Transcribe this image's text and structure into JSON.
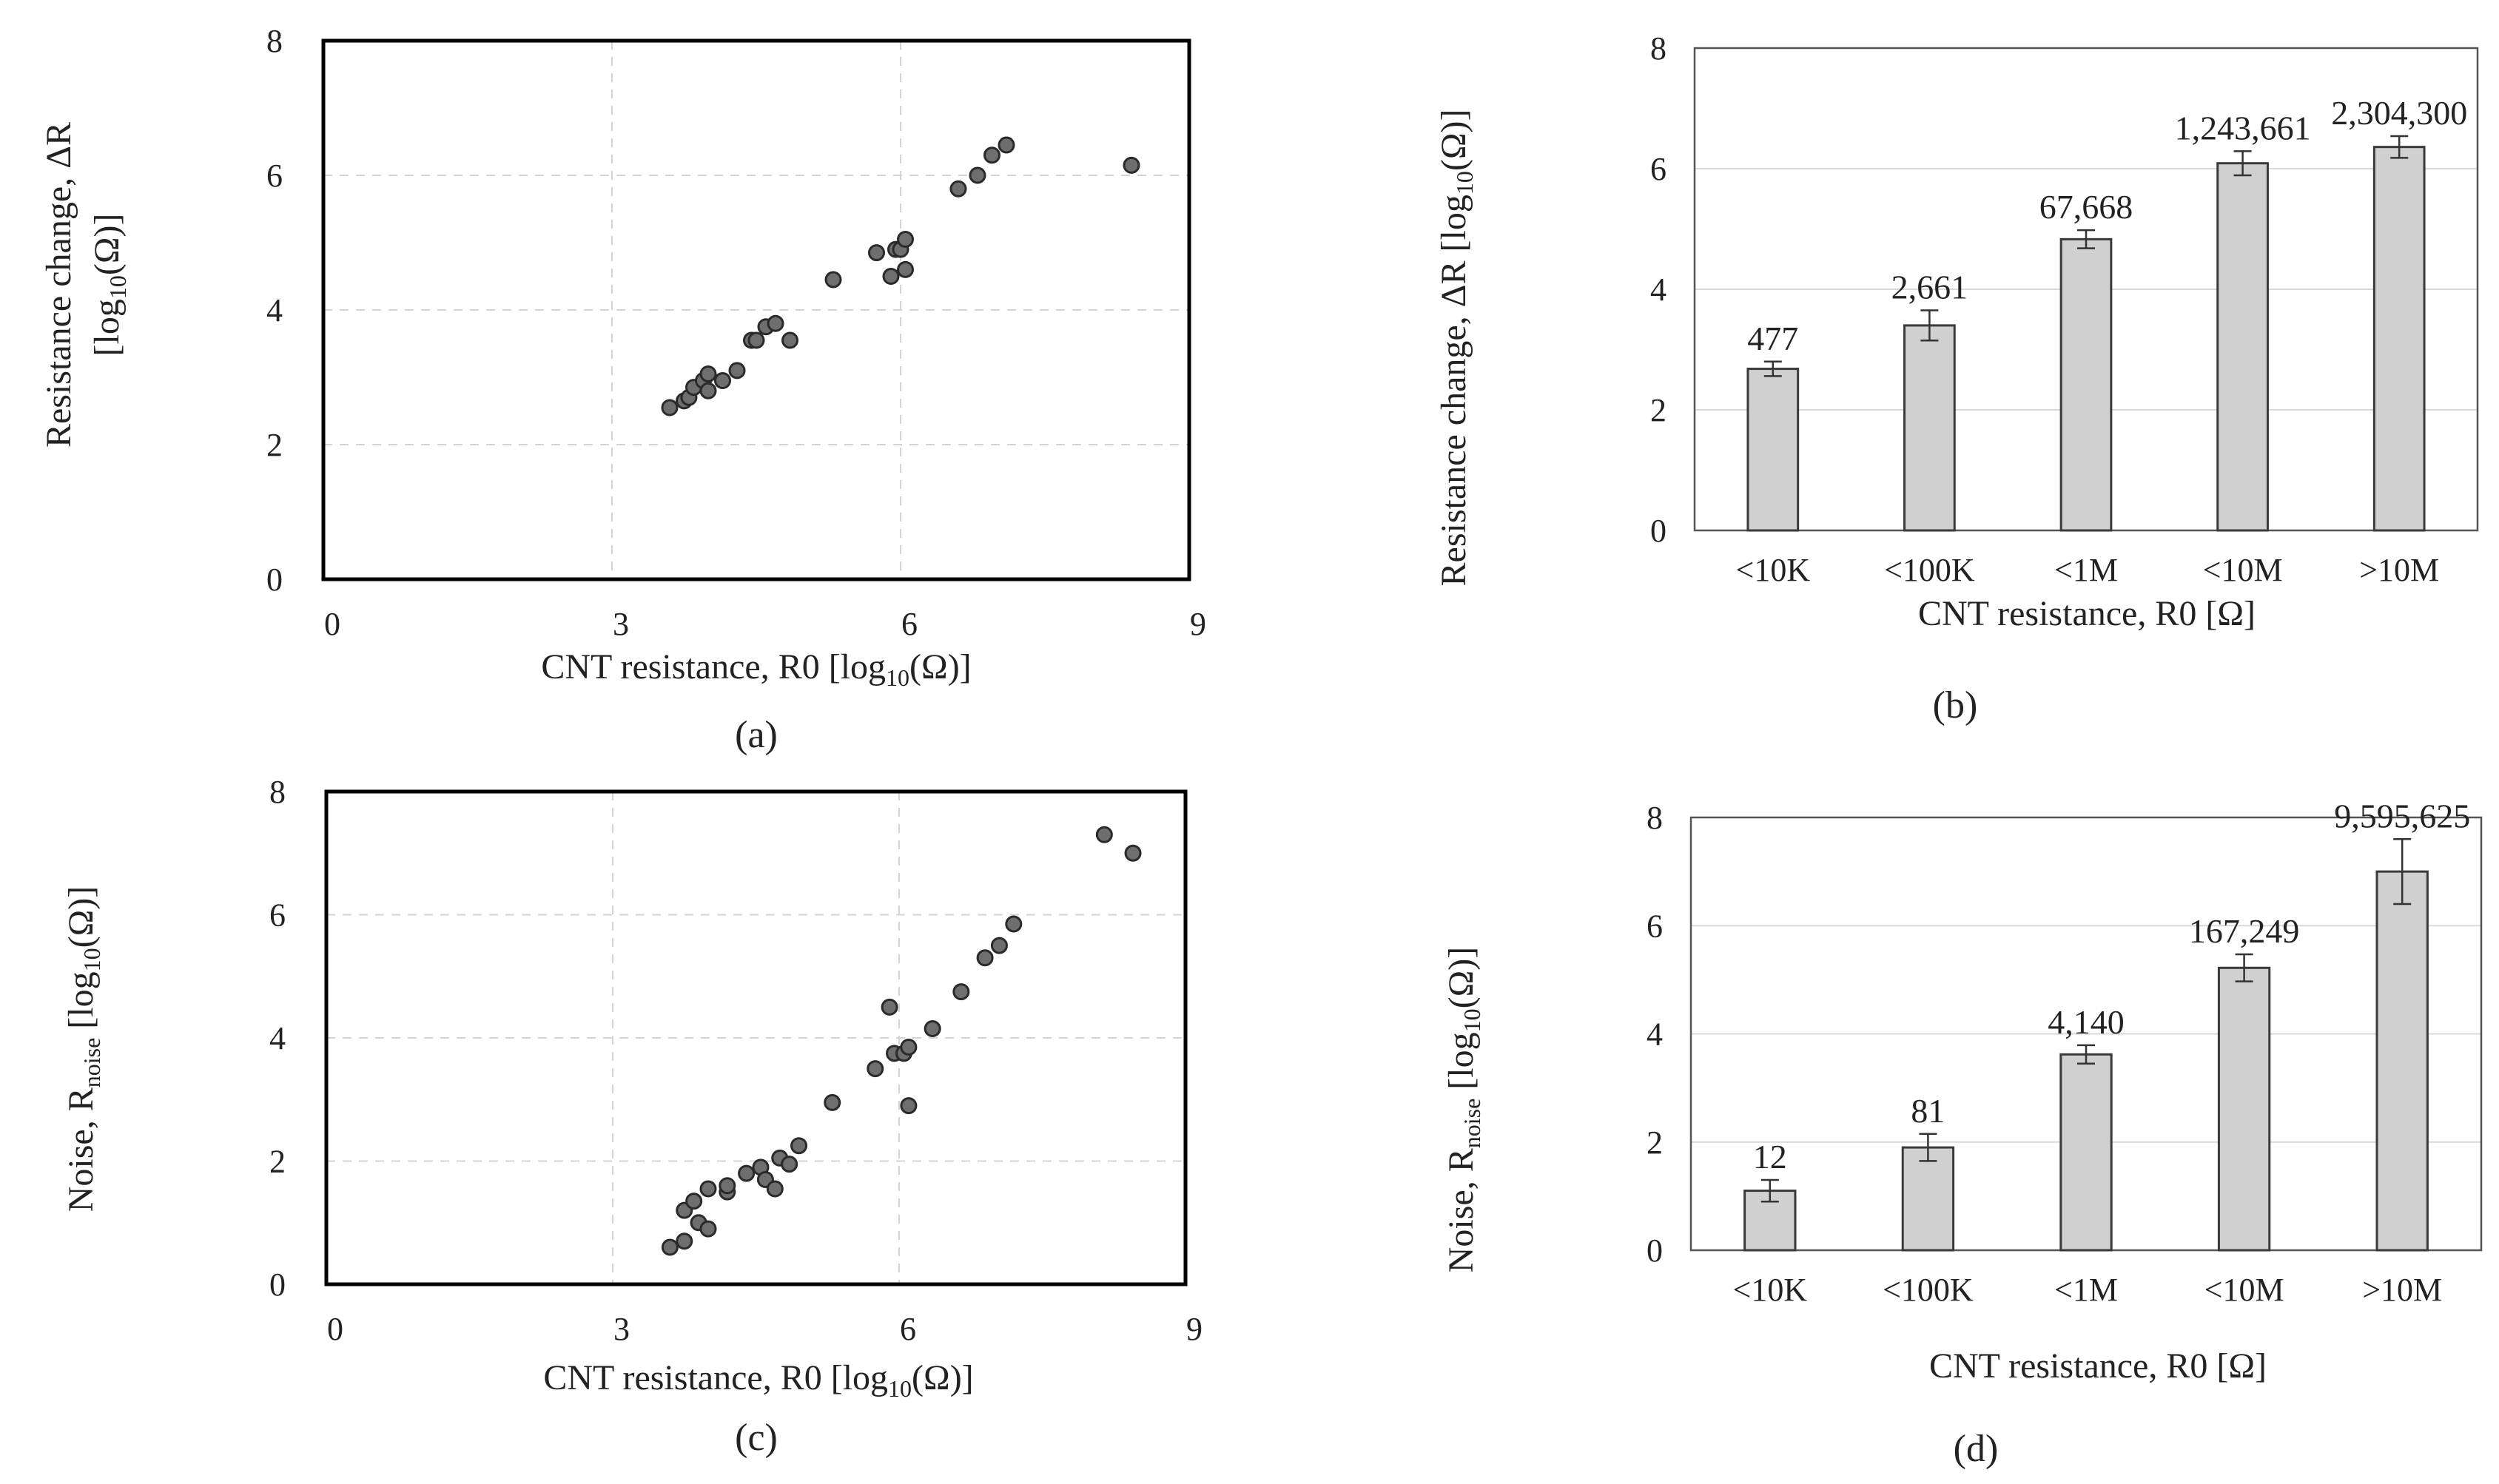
{
  "chart_data": [
    {
      "type": "scatter",
      "caption": "(a)",
      "xlabel_main": "CNT resistance, R0 [log",
      "xlabel_sub": "10",
      "xlabel_tail": "(Ω)]",
      "ylabel_line1": "Resistance change, ΔR",
      "ylabel_line2_main": "[log",
      "ylabel_line2_sub": "10",
      "ylabel_line2_tail": "(Ω)]",
      "xlim": [
        0,
        9
      ],
      "ylim": [
        0,
        8
      ],
      "xticks": [
        "0",
        "3",
        "6",
        "9"
      ],
      "yticks": [
        "0",
        "2",
        "4",
        "6",
        "8"
      ],
      "grid": true,
      "points": [
        {
          "x": 3.6,
          "y": 2.55
        },
        {
          "x": 3.75,
          "y": 2.65
        },
        {
          "x": 3.8,
          "y": 2.7
        },
        {
          "x": 3.85,
          "y": 2.85
        },
        {
          "x": 3.95,
          "y": 2.95
        },
        {
          "x": 4.0,
          "y": 2.8
        },
        {
          "x": 4.0,
          "y": 3.05
        },
        {
          "x": 4.15,
          "y": 2.95
        },
        {
          "x": 4.3,
          "y": 3.1
        },
        {
          "x": 4.45,
          "y": 3.55
        },
        {
          "x": 4.5,
          "y": 3.55
        },
        {
          "x": 4.6,
          "y": 3.75
        },
        {
          "x": 4.7,
          "y": 3.8
        },
        {
          "x": 4.85,
          "y": 3.55
        },
        {
          "x": 5.3,
          "y": 4.45
        },
        {
          "x": 5.75,
          "y": 4.85
        },
        {
          "x": 5.9,
          "y": 4.5
        },
        {
          "x": 5.95,
          "y": 4.9
        },
        {
          "x": 6.0,
          "y": 4.9
        },
        {
          "x": 6.05,
          "y": 4.6
        },
        {
          "x": 6.05,
          "y": 5.05
        },
        {
          "x": 6.6,
          "y": 5.8
        },
        {
          "x": 6.8,
          "y": 6.0
        },
        {
          "x": 6.95,
          "y": 6.3
        },
        {
          "x": 7.1,
          "y": 6.45
        },
        {
          "x": 8.4,
          "y": 6.15
        }
      ]
    },
    {
      "type": "bar",
      "caption": "(b)",
      "xlabel": "CNT resistance, R0  [Ω]",
      "ylabel_main": "Resistance change, ΔR [log",
      "ylabel_sub": "10",
      "ylabel_tail": "(Ω)]",
      "ylim": [
        0,
        8
      ],
      "yticks": [
        "0",
        "2",
        "4",
        "6",
        "8"
      ],
      "categories": [
        "<10K",
        "<100K",
        "<1M",
        "<10M",
        ">10M"
      ],
      "values": [
        2.68,
        3.4,
        4.83,
        6.09,
        6.36
      ],
      "errors": [
        0.12,
        0.25,
        0.15,
        0.2,
        0.18
      ],
      "data_labels": [
        "477",
        "2,661",
        "67,668",
        "1,243,661",
        "2,304,300"
      ]
    },
    {
      "type": "scatter",
      "caption": "(c)",
      "xlabel_main": "CNT resistance, R0 [log",
      "xlabel_sub": "10",
      "xlabel_tail": "(Ω)]",
      "ylabel_main": "Noise, R",
      "ylabel_sub1": "noise",
      "ylabel_mid": " [log",
      "ylabel_sub2": "10",
      "ylabel_tail": "(Ω)]",
      "xlim": [
        0,
        9
      ],
      "ylim": [
        0,
        8
      ],
      "xticks": [
        "0",
        "3",
        "6",
        "9"
      ],
      "yticks": [
        "0",
        "2",
        "4",
        "6",
        "8"
      ],
      "grid": true,
      "points": [
        {
          "x": 3.6,
          "y": 0.6
        },
        {
          "x": 3.75,
          "y": 0.7
        },
        {
          "x": 3.75,
          "y": 1.2
        },
        {
          "x": 3.85,
          "y": 1.35
        },
        {
          "x": 3.9,
          "y": 1.0
        },
        {
          "x": 4.0,
          "y": 0.9
        },
        {
          "x": 4.0,
          "y": 1.55
        },
        {
          "x": 4.2,
          "y": 1.5
        },
        {
          "x": 4.2,
          "y": 1.6
        },
        {
          "x": 4.4,
          "y": 1.8
        },
        {
          "x": 4.55,
          "y": 1.9
        },
        {
          "x": 4.6,
          "y": 1.7
        },
        {
          "x": 4.7,
          "y": 1.55
        },
        {
          "x": 4.75,
          "y": 2.05
        },
        {
          "x": 4.85,
          "y": 1.95
        },
        {
          "x": 4.95,
          "y": 2.25
        },
        {
          "x": 5.3,
          "y": 2.95
        },
        {
          "x": 5.75,
          "y": 3.5
        },
        {
          "x": 5.9,
          "y": 4.5
        },
        {
          "x": 5.95,
          "y": 3.75
        },
        {
          "x": 6.05,
          "y": 3.75
        },
        {
          "x": 6.1,
          "y": 2.9
        },
        {
          "x": 6.1,
          "y": 3.85
        },
        {
          "x": 6.35,
          "y": 4.15
        },
        {
          "x": 6.65,
          "y": 4.75
        },
        {
          "x": 6.9,
          "y": 5.3
        },
        {
          "x": 7.05,
          "y": 5.5
        },
        {
          "x": 7.2,
          "y": 5.85
        },
        {
          "x": 8.15,
          "y": 7.3
        },
        {
          "x": 8.45,
          "y": 7.0
        }
      ]
    },
    {
      "type": "bar",
      "caption": "(d)",
      "xlabel": "CNT resistance, R0  [Ω]",
      "ylabel_main": "Noise, R",
      "ylabel_sub1": "noise",
      "ylabel_mid": " [log",
      "ylabel_sub2": "10",
      "ylabel_tail": "(Ω)]",
      "ylim": [
        0,
        8
      ],
      "yticks": [
        "0",
        "2",
        "4",
        "6",
        "8"
      ],
      "categories": [
        "<10K",
        "<100K",
        "<1M",
        "<10M",
        ">10M"
      ],
      "values": [
        1.1,
        1.9,
        3.62,
        5.22,
        7.0
      ],
      "errors": [
        0.2,
        0.25,
        0.17,
        0.25,
        0.6
      ],
      "data_labels": [
        "12",
        "81",
        "4,140",
        "167,249",
        "9,595,625"
      ]
    }
  ]
}
